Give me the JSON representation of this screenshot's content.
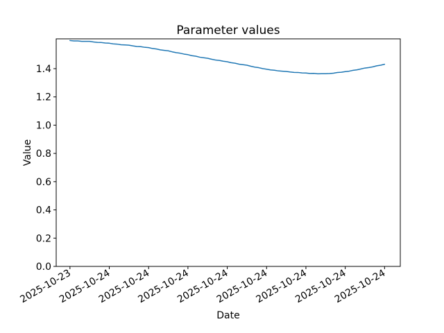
{
  "chart_data": {
    "type": "line",
    "title": "Parameter values",
    "xlabel": "Date",
    "ylabel": "Value",
    "grid": false,
    "legend": "none",
    "line_color": "#1f77b4",
    "line_width": 1.5,
    "xlim": [
      -0.35,
      8.4
    ],
    "ylim": [
      0,
      1.611
    ],
    "x_ticks": [
      0,
      1,
      2,
      3,
      4,
      5,
      6,
      7,
      8
    ],
    "x_tick_labels": [
      "2025-10-23",
      "2025-10-24",
      "2025-10-24",
      "2025-10-24",
      "2025-10-24",
      "2025-10-24",
      "2025-10-24",
      "2025-10-24",
      "2025-10-24"
    ],
    "y_ticks": [
      0.0,
      0.2,
      0.4,
      0.6,
      0.8,
      1.0,
      1.2,
      1.4
    ],
    "y_tick_format_decimals": 1,
    "series": [
      {
        "name": "parameter-values",
        "x": [
          0.0,
          0.1,
          0.2,
          0.3,
          0.4,
          0.5,
          0.6,
          0.7,
          0.8,
          0.9,
          1.0,
          1.1,
          1.2,
          1.3,
          1.4,
          1.5,
          1.6,
          1.7,
          1.8,
          1.9,
          2.0,
          2.1,
          2.2,
          2.3,
          2.4,
          2.5,
          2.6,
          2.7,
          2.8,
          2.9,
          3.0,
          3.1,
          3.2,
          3.3,
          3.4,
          3.5,
          3.6,
          3.7,
          3.8,
          3.9,
          4.0,
          4.1,
          4.2,
          4.3,
          4.4,
          4.5,
          4.6,
          4.7,
          4.8,
          4.9,
          5.0,
          5.1,
          5.2,
          5.3,
          5.4,
          5.5,
          5.6,
          5.7,
          5.8,
          5.9,
          6.0,
          6.1,
          6.2,
          6.3,
          6.4,
          6.5,
          6.6,
          6.7,
          6.8,
          6.9,
          7.0,
          7.1,
          7.2,
          7.3,
          7.4,
          7.5,
          7.6,
          7.7,
          7.8,
          7.9,
          8.0
        ],
        "y": [
          1.599,
          1.596,
          1.596,
          1.5932,
          1.5932,
          1.5933,
          1.5889,
          1.5858,
          1.5849,
          1.5814,
          1.58,
          1.5754,
          1.5738,
          1.5694,
          1.5678,
          1.5663,
          1.5611,
          1.5572,
          1.5555,
          1.5512,
          1.549,
          1.5426,
          1.5392,
          1.533,
          1.5296,
          1.5263,
          1.5191,
          1.5132,
          1.5095,
          1.5032,
          1.499,
          1.492,
          1.488,
          1.4812,
          1.4772,
          1.4733,
          1.4667,
          1.4614,
          1.4583,
          1.4526,
          1.449,
          1.4422,
          1.4384,
          1.4318,
          1.428,
          1.4243,
          1.4169,
          1.4108,
          1.4069,
          1.4004,
          1.396,
          1.391,
          1.389,
          1.3842,
          1.3822,
          1.3803,
          1.3763,
          1.3736,
          1.3731,
          1.37,
          1.369,
          1.3662,
          1.3664,
          1.3638,
          1.364,
          1.3643,
          1.3655,
          1.368,
          1.3727,
          1.3748,
          1.379,
          1.3822,
          1.3884,
          1.3918,
          1.398,
          1.4043,
          1.4079,
          1.4128,
          1.4199,
          1.4244,
          1.431
        ]
      }
    ]
  }
}
